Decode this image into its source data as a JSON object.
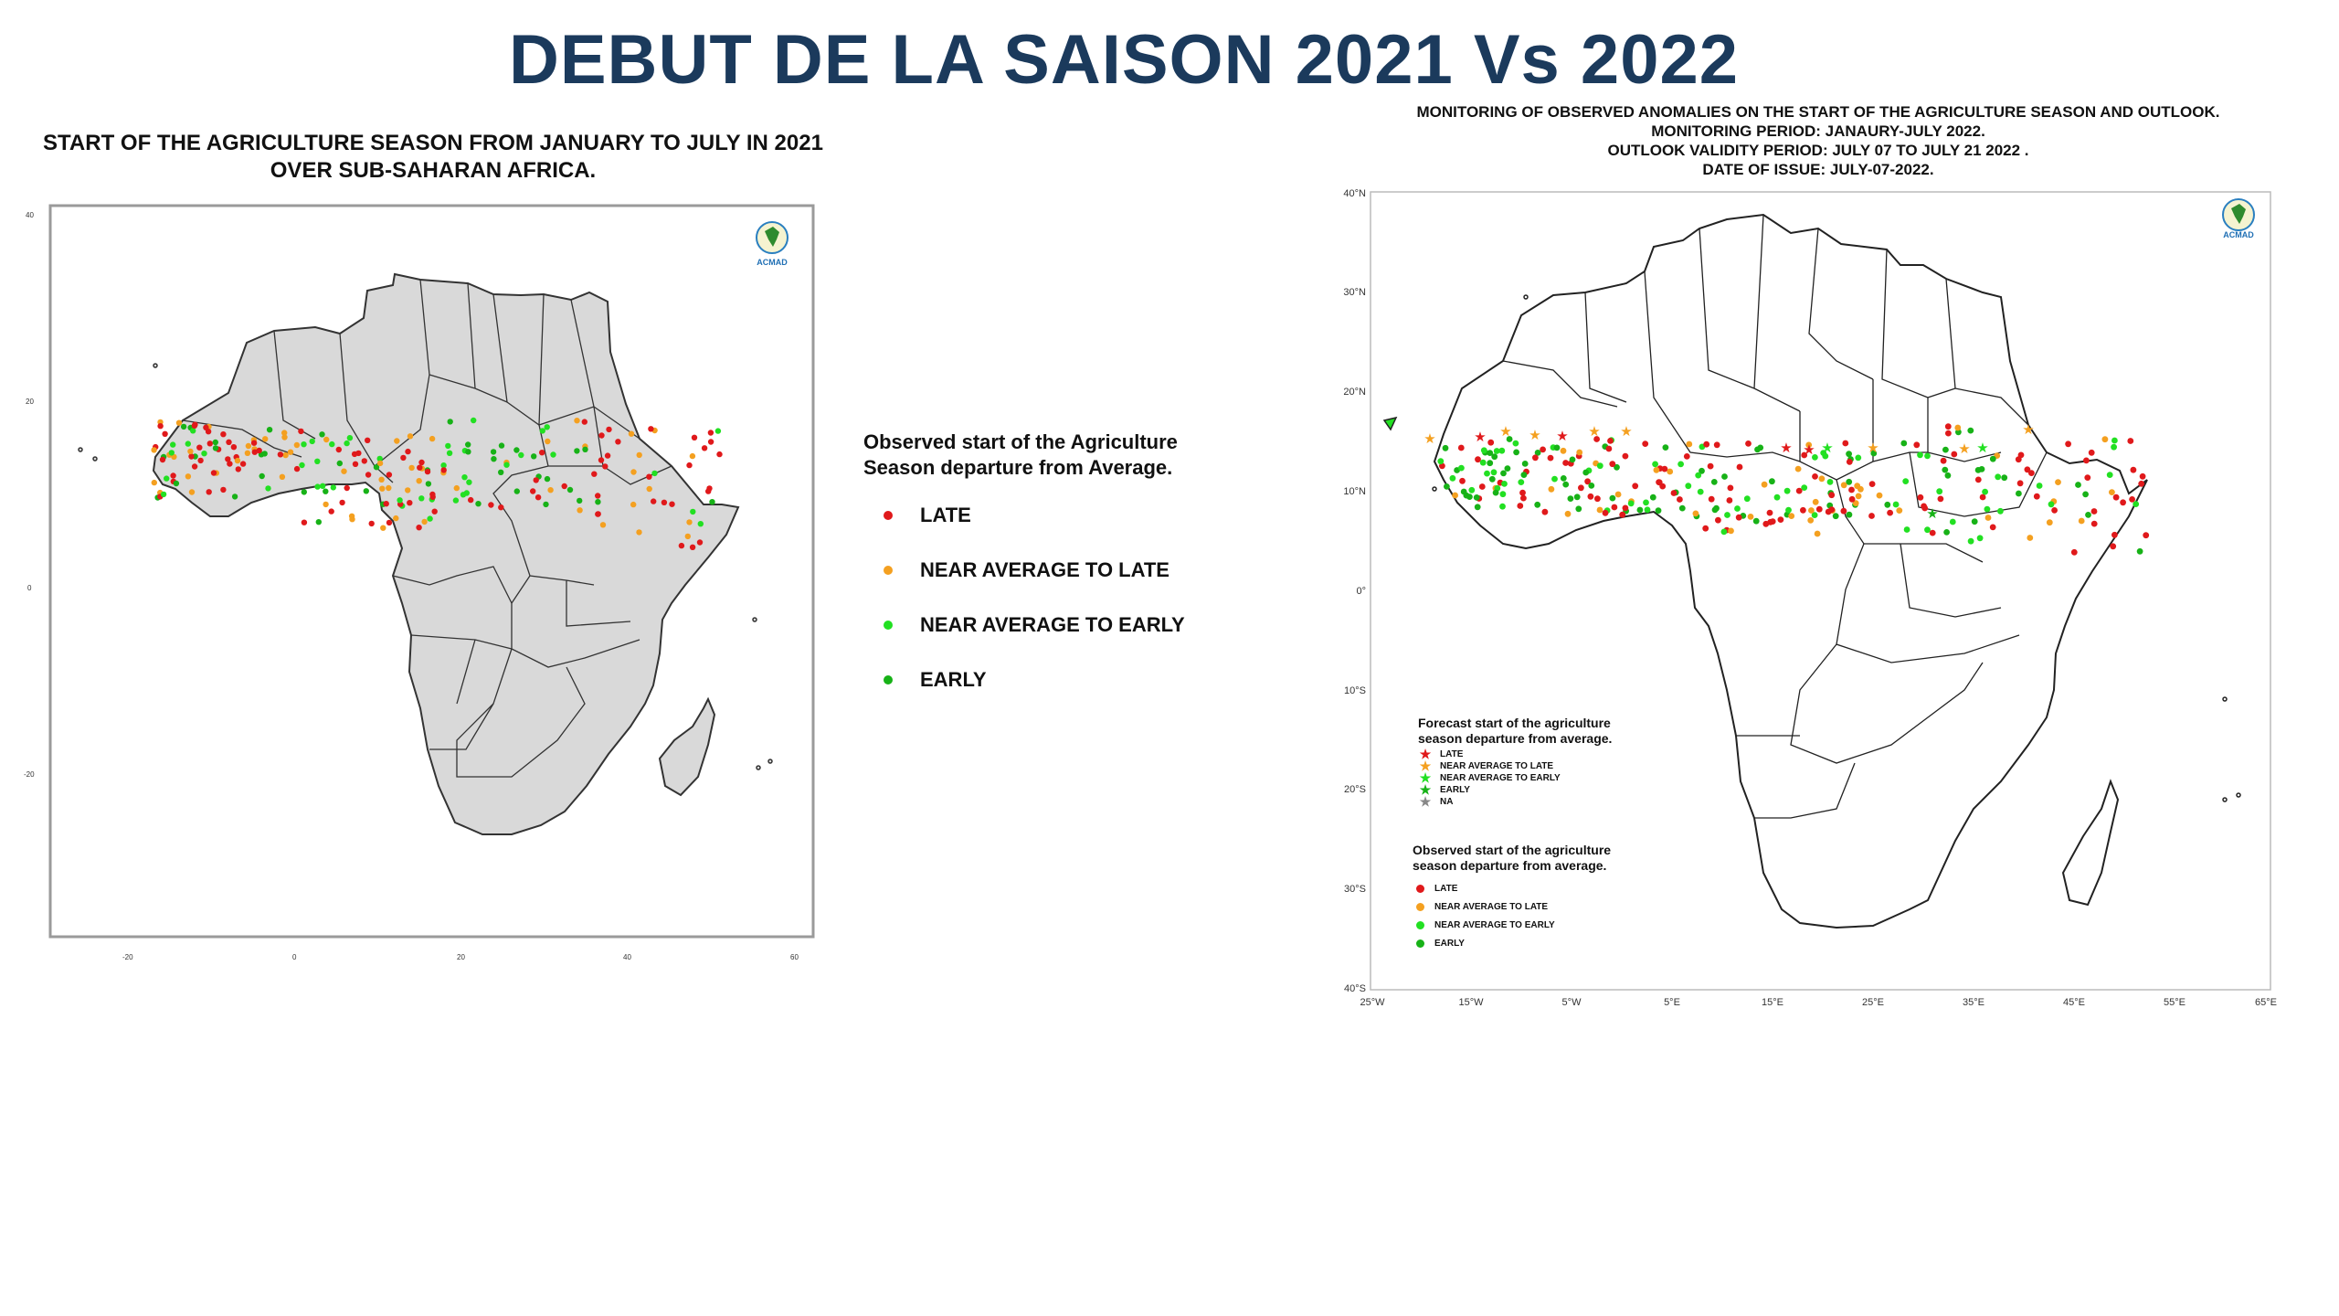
{
  "title": "DEBUT DE LA SAISON 2021 Vs 2022",
  "colors": {
    "late": "#e0191b",
    "near_late": "#f4a020",
    "near_early": "#22e022",
    "early": "#17b217",
    "title": "#1b3a5c"
  },
  "left_map": {
    "title_line1": "START OF THE AGRICULTURE SEASON FROM JANUARY TO JULY IN 2021",
    "title_line2": "OVER SUB-SAHARAN AFRICA.",
    "logo_label": "ACMAD",
    "y_ticks": [
      "40",
      "20",
      "0",
      "-20"
    ],
    "x_ticks": [
      "-20",
      "0",
      "20",
      "40",
      "60"
    ]
  },
  "left_legend": {
    "title_line1": "Observed start of the Agriculture",
    "title_line2": "Season departure from Average.",
    "items": [
      {
        "label": "LATE",
        "color": "#e0191b"
      },
      {
        "label": "NEAR AVERAGE TO LATE",
        "color": "#f4a020"
      },
      {
        "label": "NEAR AVERAGE TO EARLY",
        "color": "#22e022"
      },
      {
        "label": "EARLY",
        "color": "#17b217"
      }
    ]
  },
  "right_map": {
    "title_lines": [
      "MONITORING OF OBSERVED ANOMALIES ON THE START OF THE AGRICULTURE SEASON AND OUTLOOK.",
      "MONITORING PERIOD:  JANAURY-JULY 2022.",
      "OUTLOOK VALIDITY PERIOD: JULY 07 TO JULY 21 2022 .",
      "DATE OF ISSUE: JULY-07-2022."
    ],
    "logo_label": "ACMAD",
    "y_ticks": [
      "40°N",
      "30°N",
      "20°N",
      "10°N",
      "0°",
      "10°S",
      "20°S",
      "30°S",
      "40°S"
    ],
    "x_ticks": [
      "25°W",
      "15°W",
      "5°W",
      "5°E",
      "15°E",
      "25°E",
      "35°E",
      "45°E",
      "55°E",
      "65°E"
    ],
    "forecast_legend": {
      "title_line1": "Forecast start of the agriculture",
      "title_line2": "season departure from average.",
      "items": [
        {
          "label": "LATE",
          "color": "#e0191b"
        },
        {
          "label": "NEAR AVERAGE TO LATE",
          "color": "#f4a020"
        },
        {
          "label": "NEAR AVERAGE TO EARLY",
          "color": "#22e022"
        },
        {
          "label": "EARLY",
          "color": "#17b217"
        },
        {
          "label": "NA",
          "color": "#888888"
        }
      ]
    },
    "observed_legend": {
      "title_line1": "Observed start of the agriculture",
      "title_line2": "season departure from average.",
      "items": [
        {
          "label": "LATE",
          "color": "#e0191b"
        },
        {
          "label": "NEAR AVERAGE TO LATE",
          "color": "#f4a020"
        },
        {
          "label": "NEAR AVERAGE TO EARLY",
          "color": "#22e022"
        },
        {
          "label": "EARLY",
          "color": "#17b217"
        }
      ]
    }
  }
}
